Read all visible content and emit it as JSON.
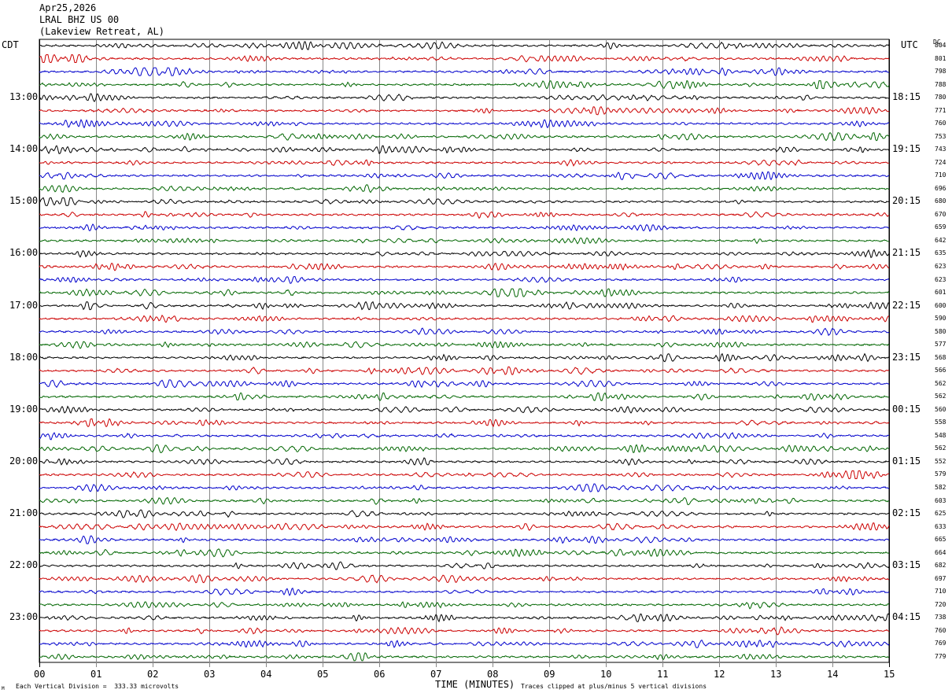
{
  "header": {
    "date": "Apr25,2026",
    "station": "LRAL BHZ US 00",
    "location": "(Lakeview Retreat, AL)"
  },
  "left_tz": "CDT",
  "right_tz": "UTC",
  "dc_header": "DC",
  "footer": {
    "xlabel": "TIME (MINUTES)",
    "scale_note": "Each Vertical Division =  333.33 microvolts",
    "clip_note": "Traces clipped at plus/minus 5 vertical divisions",
    "mark": "M"
  },
  "colors": {
    "trace_cycle": [
      "#000000",
      "#cc0000",
      "#0000cc",
      "#006600"
    ],
    "grid": "#888888"
  },
  "chart_data": {
    "type": "line",
    "subtype": "helicorder",
    "xlabel": "TIME (MINUTES)",
    "x_ticks": [
      "00",
      "01",
      "02",
      "03",
      "04",
      "05",
      "06",
      "07",
      "08",
      "09",
      "10",
      "11",
      "12",
      "13",
      "14",
      "15"
    ],
    "xlim": [
      0,
      15
    ],
    "minutes_per_trace": 15,
    "trace_count": 48,
    "left_hour_labels": [
      "13:00",
      "14:00",
      "15:00",
      "16:00",
      "17:00",
      "18:00",
      "19:00",
      "20:00",
      "21:00",
      "22:00",
      "23:00"
    ],
    "right_hour_labels": [
      "18:15",
      "19:15",
      "20:15",
      "21:15",
      "22:15",
      "23:15",
      "00:15",
      "01:15",
      "02:15",
      "03:15",
      "04:15"
    ],
    "dc_offsets": [
      "804",
      "801",
      "798",
      "788",
      "780",
      "771",
      "760",
      "753",
      "743",
      "724",
      "710",
      "696",
      "680",
      "670",
      "659",
      "642",
      "635",
      "623",
      "623",
      "601",
      "600",
      "590",
      "580",
      "577",
      "568",
      "566",
      "562",
      "562",
      "560",
      "558",
      "548",
      "562",
      "552",
      "579",
      "582",
      "603",
      "625",
      "633",
      "665",
      "664",
      "682",
      "697",
      "710",
      "720",
      "738",
      "760",
      "769",
      "779"
    ],
    "grid": true
  }
}
